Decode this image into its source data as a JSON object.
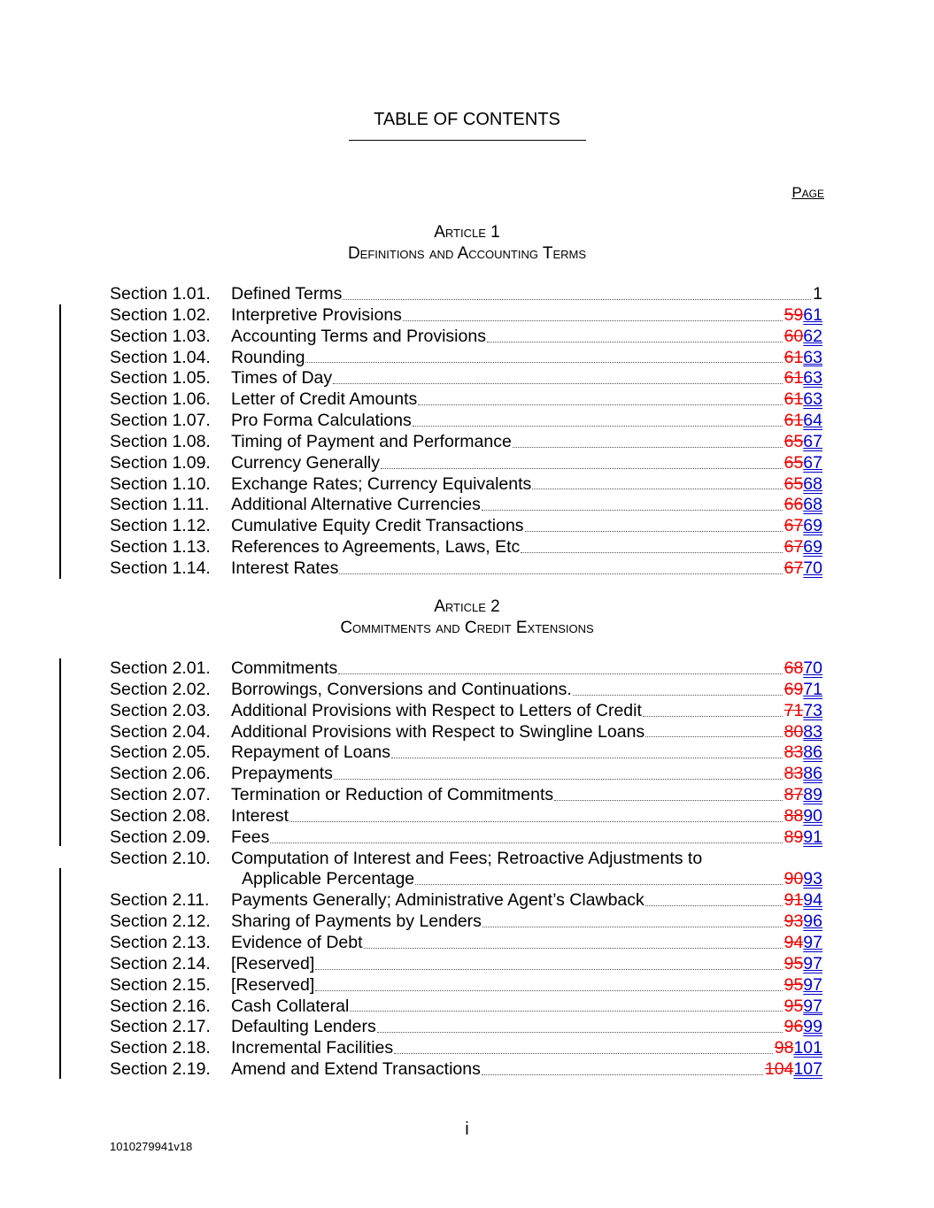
{
  "title": "TABLE OF CONTENTS",
  "page_header": "Page",
  "articles": [
    {
      "heading": "Article 1",
      "subheading": "Definitions and Accounting Terms",
      "sections": [
        {
          "num": "Section 1.01.",
          "title": "Defined Terms",
          "old": "",
          "new": "1"
        },
        {
          "num": "Section 1.02.",
          "title": "Interpretive Provisions",
          "old": "59",
          "new": "61"
        },
        {
          "num": "Section 1.03.",
          "title": "Accounting Terms and Provisions",
          "old": "60",
          "new": "62"
        },
        {
          "num": "Section 1.04.",
          "title": "Rounding",
          "old": "61",
          "new": "63"
        },
        {
          "num": "Section 1.05.",
          "title": "Times of Day",
          "old": "61",
          "new": "63"
        },
        {
          "num": "Section 1.06.",
          "title": "Letter of Credit Amounts",
          "old": "61",
          "new": "63"
        },
        {
          "num": "Section 1.07.",
          "title": "Pro Forma Calculations",
          "old": "61",
          "new": "64"
        },
        {
          "num": "Section 1.08.",
          "title": "Timing of Payment and Performance",
          "old": "65",
          "new": "67"
        },
        {
          "num": "Section 1.09.",
          "title": "Currency Generally",
          "old": "65",
          "new": "67"
        },
        {
          "num": "Section 1.10.",
          "title": "Exchange Rates; Currency Equivalents",
          "old": "65",
          "new": "68"
        },
        {
          "num": "Section 1.11.",
          "title": "Additional Alternative Currencies",
          "old": "66",
          "new": "68"
        },
        {
          "num": "Section 1.12.",
          "title": "Cumulative Equity Credit Transactions",
          "old": "67",
          "new": "69"
        },
        {
          "num": "Section 1.13.",
          "title": "References to Agreements, Laws, Etc",
          "old": "67",
          "new": "69"
        },
        {
          "num": "Section 1.14.",
          "title": "Interest Rates",
          "old": "67",
          "new": "70"
        }
      ]
    },
    {
      "heading": "Article 2",
      "subheading": "Commitments and Credit Extensions",
      "sections": [
        {
          "num": "Section 2.01.",
          "title": "Commitments",
          "old": "68",
          "new": "70"
        },
        {
          "num": "Section 2.02.",
          "title": "Borrowings, Conversions and Continuations.",
          "old": "69",
          "new": "71"
        },
        {
          "num": "Section 2.03.",
          "title": "Additional Provisions with Respect to Letters of Credit",
          "old": "71",
          "new": "73"
        },
        {
          "num": "Section 2.04.",
          "title": "Additional Provisions with Respect to Swingline Loans",
          "old": "80",
          "new": "83"
        },
        {
          "num": "Section 2.05.",
          "title": "Repayment of Loans",
          "old": "83",
          "new": "86"
        },
        {
          "num": "Section 2.06.",
          "title": "Prepayments",
          "old": "83",
          "new": "86"
        },
        {
          "num": "Section 2.07.",
          "title": "Termination or Reduction of Commitments",
          "old": "87",
          "new": "89"
        },
        {
          "num": "Section 2.08.",
          "title": "Interest",
          "old": "88",
          "new": "90"
        },
        {
          "num": "Section 2.09.",
          "title": "Fees",
          "old": "89",
          "new": "91"
        },
        {
          "num": "Section 2.10.",
          "title": "Computation of Interest and Fees; Retroactive Adjustments to",
          "title_cont": "Applicable Percentage",
          "old": "90",
          "new": "93"
        },
        {
          "num": "Section 2.11.",
          "title": "Payments Generally; Administrative Agent’s Clawback",
          "old": "91",
          "new": "94"
        },
        {
          "num": "Section 2.12.",
          "title": "Sharing of Payments by Lenders",
          "old": "93",
          "new": "96"
        },
        {
          "num": "Section 2.13.",
          "title": "Evidence of Debt",
          "old": "94",
          "new": "97"
        },
        {
          "num": "Section 2.14.",
          "title": "[Reserved]",
          "old": "95",
          "new": "97"
        },
        {
          "num": "Section 2.15.",
          "title": "[Reserved]",
          "old": "95",
          "new": "97"
        },
        {
          "num": "Section 2.16.",
          "title": "Cash Collateral",
          "old": "95",
          "new": "97"
        },
        {
          "num": "Section 2.17.",
          "title": "Defaulting Lenders",
          "old": "96",
          "new": "99"
        },
        {
          "num": "Section 2.18.",
          "title": "Incremental Facilities",
          "old": "98",
          "new": "101"
        },
        {
          "num": "Section 2.19.",
          "title": "Amend and Extend Transactions",
          "old": "104",
          "new": "107"
        }
      ]
    }
  ],
  "footer": {
    "page_number": "i",
    "doc_id": "1010279941v18"
  },
  "colors": {
    "deleted": "#ee0000",
    "inserted": "#0000cc"
  }
}
